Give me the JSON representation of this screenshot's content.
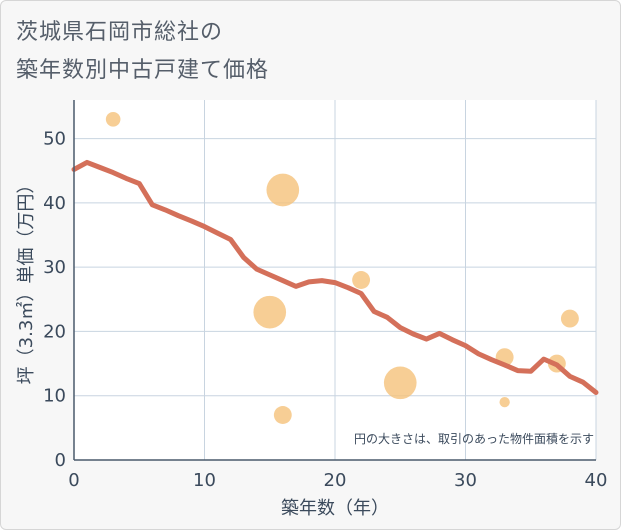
{
  "title_line1": "茨城県石岡市総社の",
  "title_line2": "築年数別中古戸建て価格",
  "chart_data": {
    "type": "scatter+line",
    "xlabel": "築年数（年）",
    "ylabel": "坪（3.3㎡）単価（万円）",
    "xlim": [
      0,
      40
    ],
    "ylim": [
      0,
      56
    ],
    "x_ticks": [
      0,
      10,
      20,
      30,
      40
    ],
    "y_ticks": [
      0,
      10,
      20,
      30,
      40,
      50
    ],
    "note": "円の大きさは、取引のあった物件面積を示す",
    "colors": {
      "line": "#d4705a",
      "bubble": "#f5c27a",
      "grid": "#c8d4e0",
      "axis": "#4a5a6c"
    },
    "scatter": [
      {
        "x": 3,
        "y": 53,
        "size": 1
      },
      {
        "x": 16,
        "y": 42,
        "size": 5
      },
      {
        "x": 15,
        "y": 23,
        "size": 5
      },
      {
        "x": 16,
        "y": 7,
        "size": 1.5
      },
      {
        "x": 22,
        "y": 28,
        "size": 1.5
      },
      {
        "x": 25,
        "y": 12,
        "size": 5
      },
      {
        "x": 33,
        "y": 16,
        "size": 1.5
      },
      {
        "x": 33,
        "y": 9,
        "size": 0.5
      },
      {
        "x": 37,
        "y": 15,
        "size": 1.5
      },
      {
        "x": 38,
        "y": 22,
        "size": 1.5
      }
    ],
    "line": {
      "x": [
        0,
        1,
        2,
        3,
        4,
        5,
        6,
        7,
        8,
        9,
        10,
        11,
        12,
        13,
        14,
        15,
        16,
        17,
        18,
        19,
        20,
        21,
        22,
        23,
        24,
        25,
        26,
        27,
        28,
        29,
        30,
        31,
        32,
        33,
        34,
        35,
        36,
        37,
        38,
        39,
        40
      ],
      "y": [
        45.2,
        46.3,
        45.5,
        44.7,
        43.8,
        43.0,
        39.7,
        38.9,
        38.0,
        37.2,
        36.3,
        35.3,
        34.3,
        31.5,
        29.7,
        28.8,
        27.9,
        27.0,
        27.7,
        27.9,
        27.6,
        26.8,
        25.9,
        23.1,
        22.2,
        20.6,
        19.6,
        18.8,
        19.7,
        18.7,
        17.8,
        16.5,
        15.6,
        14.8,
        13.9,
        13.8,
        15.7,
        14.8,
        13.0,
        12.1,
        10.5
      ]
    }
  }
}
